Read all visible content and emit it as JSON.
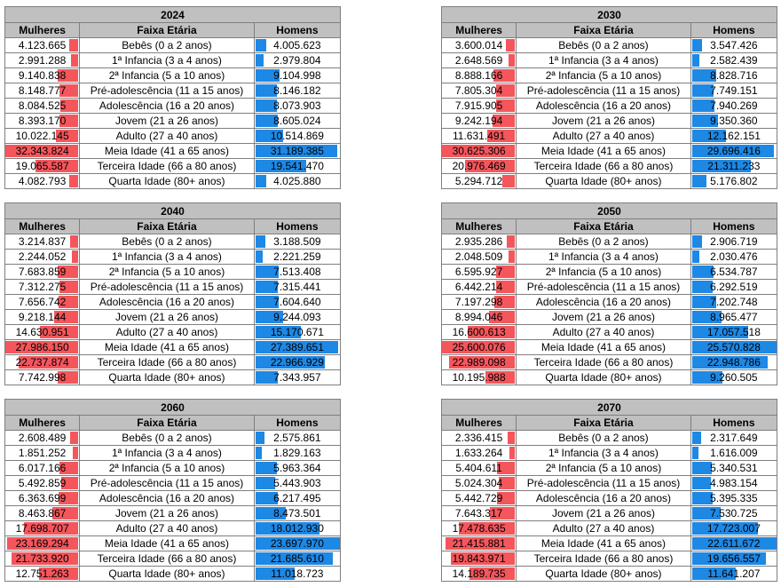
{
  "colors": {
    "women_bar": "#f4565c",
    "men_bar": "#1e88e5",
    "header_bg": "#c0c0c0"
  },
  "headers": {
    "women": "Mulheres",
    "age": "Faixa Etária",
    "men": "Homens"
  },
  "age_groups": [
    "Bebês (0 a 2 anos)",
    "1ª Infancia (3 a 4 anos)",
    "2ª Infancia (5 a 10 anos)",
    "Pré-adolescência (11 a 15 anos)",
    "Adolescência (16 a 20 anos)",
    "Jovem (21 a 26 anos)",
    "Adulto (27 a 40 anos)",
    "Meia Idade (41 a 65 anos)",
    "Terceira Idade (66 a 80 anos)",
    "Quarta Idade (80+ anos)"
  ],
  "tables": [
    {
      "year": "2024",
      "women": [
        "4.123.665",
        "2.991.288",
        "9.140.838",
        "8.148.777",
        "8.084.525",
        "8.393.170",
        "10.022.145",
        "32.343.824",
        "19.065.587",
        "4.082.793"
      ],
      "men": [
        "4.005.623",
        "2.979.804",
        "9.104.998",
        "8.146.182",
        "8.073.903",
        "8.605.024",
        "10.514.869",
        "31.189.385",
        "19.541.470",
        "4.025.880"
      ]
    },
    {
      "year": "2030",
      "women": [
        "3.600.014",
        "2.648.569",
        "8.888.166",
        "7.805.304",
        "7.915.905",
        "9.242.194",
        "11.631.491",
        "30.625.306",
        "20.976.469",
        "5.294.712"
      ],
      "men": [
        "3.547.426",
        "2.582.439",
        "8.828.716",
        "7.749.151",
        "7.940.269",
        "9.350.360",
        "12.162.151",
        "29.696.416",
        "21.311.233",
        "5.176.802"
      ]
    },
    {
      "year": "2040",
      "women": [
        "3.214.837",
        "2.244.052",
        "7.683.859",
        "7.312.275",
        "7.656.742",
        "9.218.144",
        "14.630.951",
        "27.986.150",
        "22.737.874",
        "7.742.998"
      ],
      "men": [
        "3.188.509",
        "2.221.259",
        "7.513.408",
        "7.315.441",
        "7.604.640",
        "9.244.093",
        "15.170.671",
        "27.389.651",
        "22.966.929",
        "7.343.957"
      ]
    },
    {
      "year": "2050",
      "women": [
        "2.935.286",
        "2.048.509",
        "6.595.927",
        "6.442.214",
        "7.197.298",
        "8.994.046",
        "16.600.613",
        "25.600.076",
        "22.989.098",
        "10.195.988"
      ],
      "men": [
        "2.906.719",
        "2.030.476",
        "6.534.787",
        "6.292.519",
        "7.202.748",
        "8.965.477",
        "17.057.518",
        "25.570.828",
        "22.948.786",
        "9.260.505"
      ]
    },
    {
      "year": "2060",
      "women": [
        "2.608.489",
        "1.851.252",
        "6.017.166",
        "5.492.859",
        "6.363.699",
        "8.463.867",
        "17.698.707",
        "23.169.294",
        "21.733.920",
        "12.751.263"
      ],
      "men": [
        "2.575.861",
        "1.829.163",
        "5.963.364",
        "5.443.903",
        "6.217.495",
        "8.473.501",
        "18.012.930",
        "23.697.970",
        "21.685.610",
        "11.018.723"
      ]
    },
    {
      "year": "2070",
      "women": [
        "2.336.415",
        "1.633.264",
        "5.404.611",
        "5.024.304",
        "5.442.729",
        "7.643.317",
        "17.478.635",
        "21.415.881",
        "19.843.971",
        "14.189.735"
      ],
      "men": [
        "2.317.649",
        "1.616.009",
        "5.340.531",
        "4.983.154",
        "5.395.335",
        "7.530.725",
        "17.723.007",
        "22.611.672",
        "19.656.557",
        "11.641.207"
      ]
    }
  ]
}
